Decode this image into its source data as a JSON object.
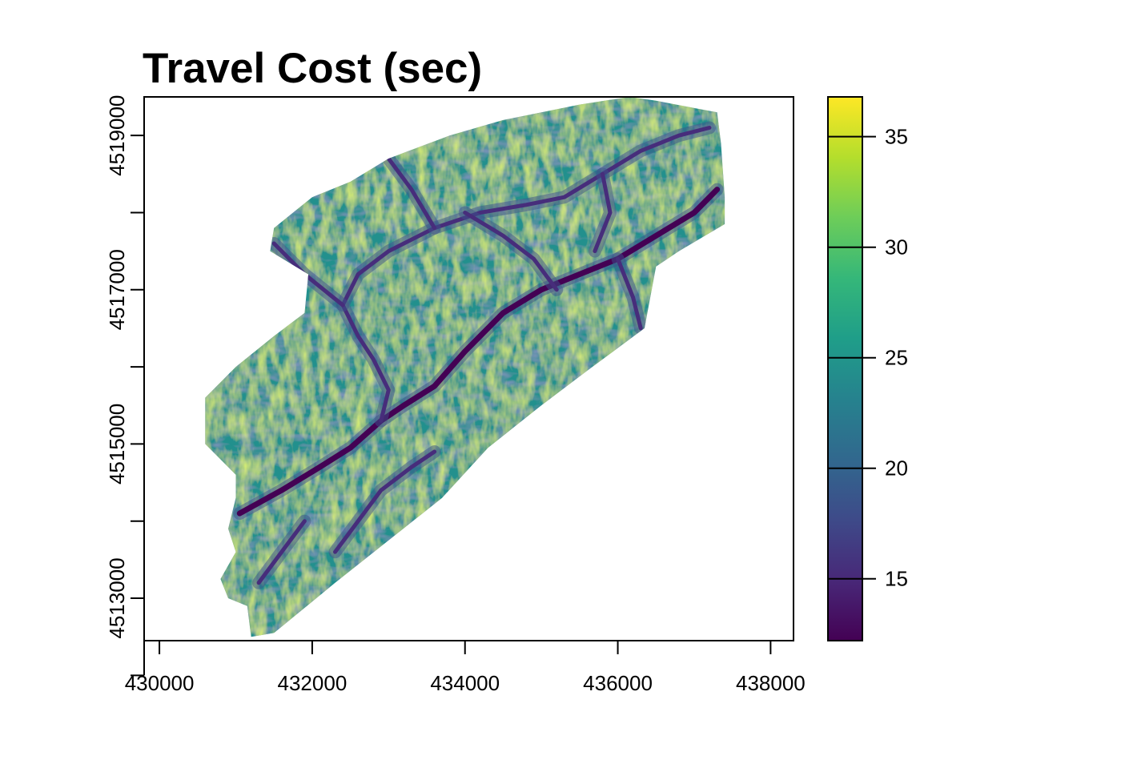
{
  "chart_data": {
    "type": "heatmap",
    "title": "Travel Cost (sec)",
    "xlabel": "",
    "ylabel": "",
    "xlim": [
      429800,
      438300
    ],
    "ylim": [
      4512450,
      4519500
    ],
    "x_ticks": [
      430000,
      432000,
      434000,
      436000,
      438000
    ],
    "x_tick_labels": [
      "430000",
      "432000",
      "434000",
      "436000",
      "438000"
    ],
    "y_ticks": [
      4513000,
      4515000,
      4517000,
      4519000
    ],
    "y_tick_labels": [
      "4513000",
      "4515000",
      "4517000",
      "4519000"
    ],
    "colorbar": {
      "range": [
        12.2,
        36.8
      ],
      "ticks": [
        15,
        20,
        25,
        30,
        35
      ],
      "tick_labels": [
        "15",
        "20",
        "25",
        "30",
        "35"
      ],
      "palette": [
        "#440154",
        "#482878",
        "#3e4a89",
        "#31688e",
        "#26828e",
        "#1f9e89",
        "#35b779",
        "#6dcd59",
        "#b4de2c",
        "#fde725"
      ]
    },
    "region_boundary": [
      [
        431200,
        4512500
      ],
      [
        431500,
        4512550
      ],
      [
        432300,
        4513200
      ],
      [
        433000,
        4513750
      ],
      [
        433700,
        4514300
      ],
      [
        434300,
        4514950
      ],
      [
        435000,
        4515500
      ],
      [
        435600,
        4515950
      ],
      [
        436350,
        4516500
      ],
      [
        436500,
        4517300
      ],
      [
        436800,
        4517500
      ],
      [
        437400,
        4517850
      ],
      [
        437400,
        4518200
      ],
      [
        437350,
        4518900
      ],
      [
        437300,
        4519300
      ],
      [
        436500,
        4519450
      ],
      [
        436150,
        4519500
      ],
      [
        435500,
        4519400
      ],
      [
        434500,
        4519200
      ],
      [
        433800,
        4519000
      ],
      [
        433000,
        4518700
      ],
      [
        432500,
        4518400
      ],
      [
        432000,
        4518200
      ],
      [
        431500,
        4517800
      ],
      [
        431450,
        4517500
      ],
      [
        431950,
        4517200
      ],
      [
        431900,
        4516700
      ],
      [
        431500,
        4516400
      ],
      [
        431000,
        4516000
      ],
      [
        430600,
        4515600
      ],
      [
        430600,
        4515000
      ],
      [
        431000,
        4514600
      ],
      [
        431000,
        4514300
      ],
      [
        430900,
        4513900
      ],
      [
        431000,
        4513600
      ],
      [
        430800,
        4513250
      ],
      [
        430900,
        4513000
      ],
      [
        431150,
        4512900
      ]
    ],
    "channels": [
      [
        [
          431050,
          4514100
        ],
        [
          431600,
          4514400
        ],
        [
          432100,
          4514700
        ],
        [
          432500,
          4514950
        ],
        [
          432900,
          4515300
        ],
        [
          433200,
          4515500
        ],
        [
          433600,
          4515750
        ],
        [
          434000,
          4516200
        ],
        [
          434500,
          4516700
        ],
        [
          435000,
          4517000
        ],
        [
          435500,
          4517200
        ],
        [
          436000,
          4517400
        ],
        [
          436500,
          4517700
        ],
        [
          437000,
          4518000
        ],
        [
          437300,
          4518300
        ]
      ],
      [
        [
          432900,
          4515300
        ],
        [
          433000,
          4515700
        ],
        [
          432800,
          4516100
        ],
        [
          432600,
          4516400
        ],
        [
          432400,
          4516800
        ],
        [
          432600,
          4517200
        ],
        [
          433000,
          4517500
        ],
        [
          433600,
          4517800
        ],
        [
          434200,
          4518000
        ],
        [
          434800,
          4518100
        ],
        [
          435300,
          4518200
        ],
        [
          435800,
          4518500
        ],
        [
          436300,
          4518800
        ],
        [
          436800,
          4519000
        ],
        [
          437200,
          4519100
        ]
      ],
      [
        [
          434000,
          4518000
        ],
        [
          434500,
          4517700
        ],
        [
          434900,
          4517400
        ],
        [
          435200,
          4517000
        ]
      ],
      [
        [
          432400,
          4516800
        ],
        [
          431900,
          4517200
        ],
        [
          431500,
          4517600
        ]
      ],
      [
        [
          433000,
          4518700
        ],
        [
          433300,
          4518300
        ],
        [
          433600,
          4517800
        ]
      ],
      [
        [
          432300,
          4513600
        ],
        [
          432600,
          4514000
        ],
        [
          432900,
          4514400
        ],
        [
          433300,
          4514700
        ],
        [
          433600,
          4514900
        ]
      ],
      [
        [
          431300,
          4513200
        ],
        [
          431600,
          4513600
        ],
        [
          431900,
          4514000
        ]
      ],
      [
        [
          435800,
          4518500
        ],
        [
          435900,
          4518000
        ],
        [
          435700,
          4517500
        ]
      ],
      [
        [
          436000,
          4517400
        ],
        [
          436200,
          4516900
        ],
        [
          436300,
          4516500
        ]
      ]
    ]
  }
}
